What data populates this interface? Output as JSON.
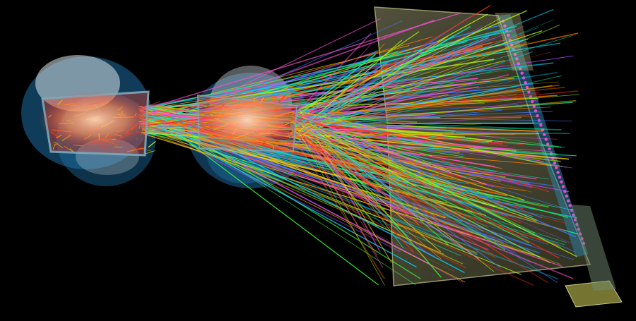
{
  "scene": {
    "background": "#000000",
    "track_palette": [
      "#ff2a1a",
      "#ff7a00",
      "#ffd000",
      "#b8ff00",
      "#35ff3a",
      "#00ffb0",
      "#00d2ff",
      "#3a7bff",
      "#b34bff",
      "#ff4fd8"
    ],
    "detector_colors": {
      "magnet_shell": "#1e6ea3",
      "magnet_ring_light": "#d9e1e6",
      "chamber_glass": "#7ea7b8",
      "chamber_core": "#ff3b1f",
      "wall_panel": "#c9c98a",
      "readout_strip": "#2f7ea0",
      "readout_dots": "#ff4fd8",
      "base_block": "#8a8a3a"
    }
  }
}
